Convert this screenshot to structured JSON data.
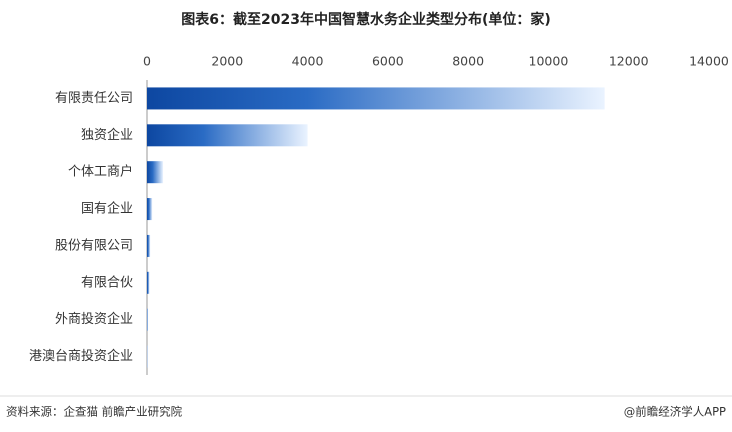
{
  "chart_data": {
    "type": "bar",
    "orientation": "horizontal",
    "title": "图表6：截至2023年中国智慧水务企业类型分布(单位：家)",
    "categories": [
      "有限责任公司",
      "独资企业",
      "个体工商户",
      "国有企业",
      "股份有限公司",
      "有限合伙",
      "外商投资企业",
      "港澳台商投资企业"
    ],
    "values": [
      11400,
      4000,
      400,
      130,
      80,
      60,
      20,
      10
    ],
    "color": "#0d47a1",
    "xlim": [
      0,
      14000
    ],
    "xticks": [
      0,
      2000,
      4000,
      6000,
      8000,
      10000,
      12000,
      14000
    ],
    "source": "资料来源：企查猫 前瞻产业研究院",
    "credit": "@前瞻经济学人APP"
  }
}
